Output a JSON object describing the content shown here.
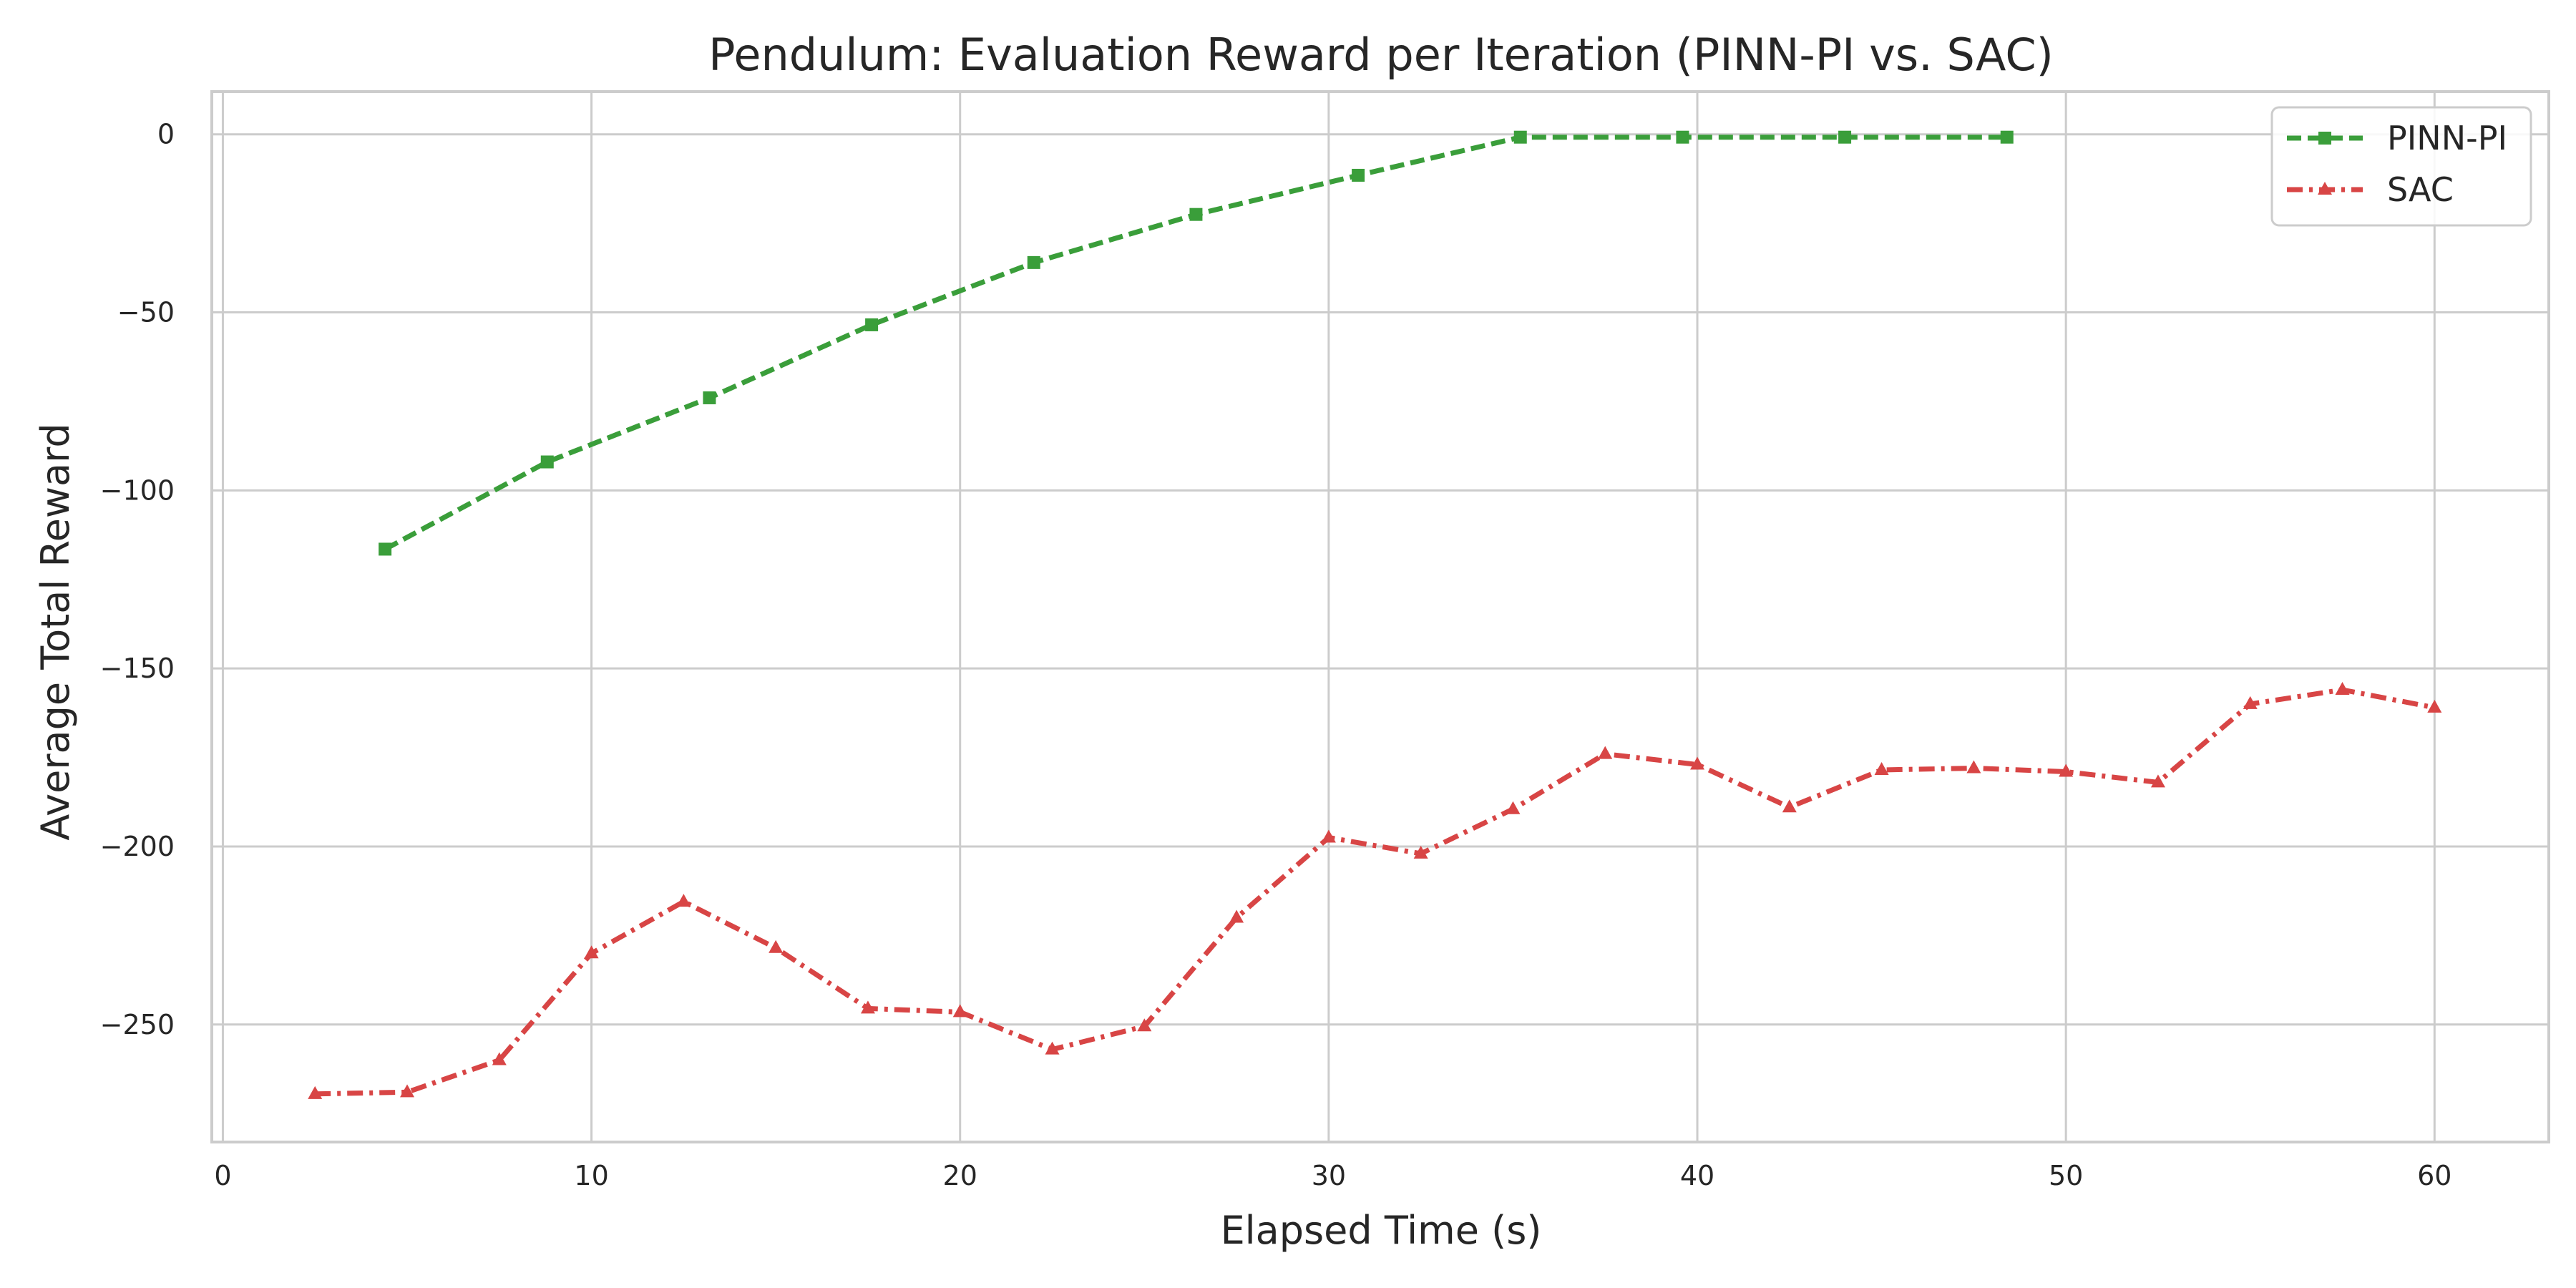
{
  "chart_data": {
    "type": "line",
    "title": "Pendulum: Evaluation Reward per Iteration (PINN-PI vs. SAC)",
    "xlabel": "Elapsed Time (s)",
    "ylabel": "Average Total Reward",
    "xlim": [
      -0.3,
      63.1
    ],
    "ylim": [
      -283,
      12
    ],
    "xticks": [
      0,
      10,
      20,
      30,
      40,
      50,
      60
    ],
    "yticks": [
      0,
      -50,
      -100,
      -150,
      -200,
      -250
    ],
    "xtick_labels": [
      "0",
      "10",
      "20",
      "30",
      "40",
      "50",
      "60"
    ],
    "ytick_labels": [
      "0",
      "−50",
      "−100",
      "−150",
      "−200",
      "−250"
    ],
    "grid": true,
    "legend_position": "top-right",
    "series": [
      {
        "name": "PINN-PI",
        "color": "#3a9e3a",
        "line_style": "dashed",
        "marker": "square",
        "x": [
          4.4,
          8.8,
          13.2,
          17.6,
          22.0,
          26.4,
          30.8,
          35.2,
          39.6,
          44.0,
          48.4
        ],
        "y": [
          -116.5,
          -92,
          -74,
          -53.5,
          -36,
          -22.5,
          -11.5,
          -0.8,
          -0.8,
          -0.8,
          -0.8
        ]
      },
      {
        "name": "SAC",
        "color": "#d84545",
        "line_style": "dashdot",
        "marker": "triangle",
        "x": [
          2.5,
          5.0,
          7.5,
          10.0,
          12.5,
          15.0,
          17.5,
          20.0,
          22.5,
          25.0,
          27.5,
          30.0,
          32.5,
          35.0,
          37.5,
          40.0,
          42.5,
          45.0,
          47.5,
          50.0,
          52.5,
          55.0,
          57.5,
          60.0
        ],
        "y": [
          -269.5,
          -269,
          -260,
          -230,
          -215.5,
          -228.5,
          -245.5,
          -246.5,
          -257,
          -250.5,
          -220,
          -197.5,
          -202,
          -189.5,
          -174,
          -177,
          -189,
          -178.5,
          -178,
          -179,
          -182,
          -160,
          -156,
          -161
        ]
      }
    ]
  }
}
